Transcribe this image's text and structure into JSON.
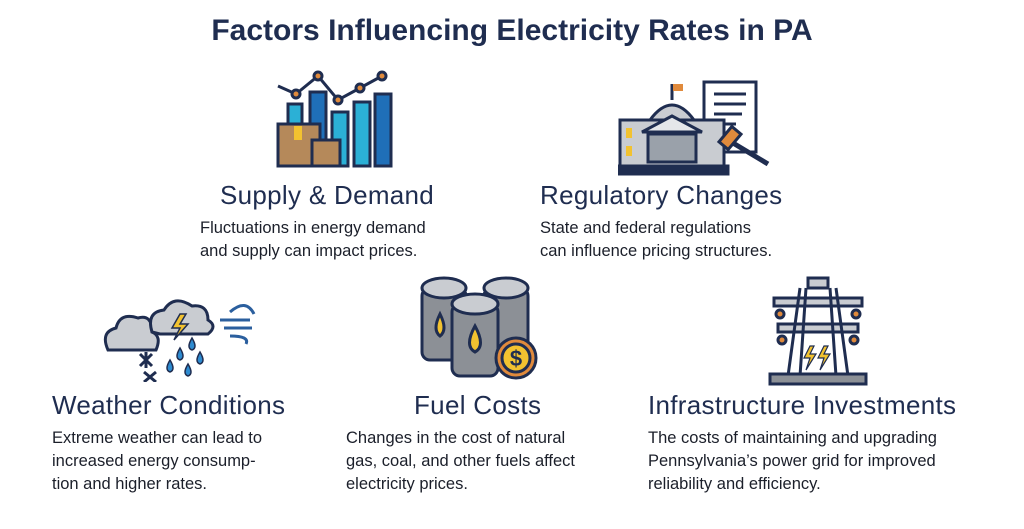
{
  "title": "Factors Influencing Electricity Rates in PA",
  "factors": [
    {
      "icon": "bar-chart-boxes-icon",
      "heading": "Supply & Demand",
      "lines": [
        "Fluctuations in energy demand",
        "and supply can impact prices."
      ]
    },
    {
      "icon": "capitol-document-gavel-icon",
      "heading": "Regulatory Changes",
      "lines": [
        "State and federal regulations",
        "can influence pricing structures."
      ]
    },
    {
      "icon": "storm-weather-icon",
      "heading": "Weather Conditions",
      "lines": [
        "Extreme weather can lead to",
        "increased energy consump-",
        "tion and higher rates."
      ]
    },
    {
      "icon": "fuel-barrels-dollar-icon",
      "heading": "Fuel Costs",
      "lines": [
        "Changes in the cost of natural",
        "gas, coal, and other fuels affect",
        "electricity prices."
      ]
    },
    {
      "icon": "power-tower-icon",
      "heading": "Infrastructure Investments",
      "lines": [
        "The costs of maintaining and upgrading",
        "Pennsylvania’s power grid for improved",
        "reliability and efficiency."
      ]
    }
  ],
  "colors": {
    "navy": "#1f2d50",
    "blue": "#1f6fb8",
    "cyan": "#2bb0d6",
    "orange": "#e08a3c",
    "yellow": "#f2c230",
    "gray": "#c9ccd1",
    "brown": "#b5895a"
  }
}
